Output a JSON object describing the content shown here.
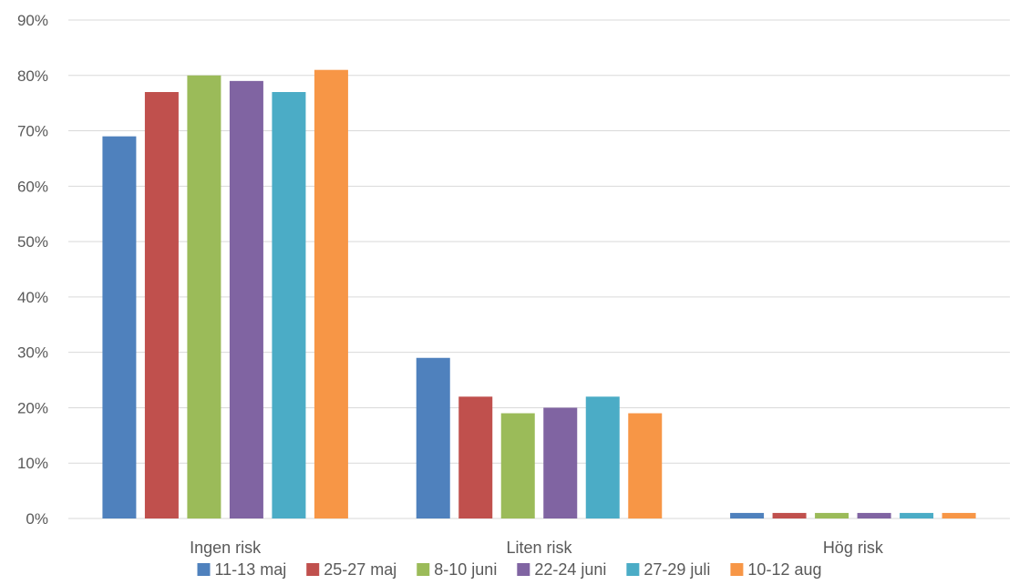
{
  "chart_data": {
    "type": "bar",
    "title": "",
    "xlabel": "",
    "ylabel": "",
    "ylim": [
      0,
      90
    ],
    "y_ticks": [
      "0%",
      "10%",
      "20%",
      "30%",
      "40%",
      "50%",
      "60%",
      "70%",
      "80%",
      "90%"
    ],
    "y_tick_values": [
      0,
      10,
      20,
      30,
      40,
      50,
      60,
      70,
      80,
      90
    ],
    "categories": [
      "Ingen risk",
      "Liten risk",
      "Hög risk"
    ],
    "grid": true,
    "legend_position": "bottom",
    "series": [
      {
        "name": "11-13 maj",
        "color": "#4F81BD",
        "values": [
          69,
          29,
          1
        ]
      },
      {
        "name": "25-27 maj",
        "color": "#C0504D",
        "values": [
          77,
          22,
          1
        ]
      },
      {
        "name": "8-10 juni",
        "color": "#9BBB59",
        "values": [
          80,
          19,
          1
        ]
      },
      {
        "name": "22-24 juni",
        "color": "#8064A2",
        "values": [
          79,
          20,
          1
        ]
      },
      {
        "name": "27-29 juli",
        "color": "#4BACC6",
        "values": [
          77,
          22,
          1
        ]
      },
      {
        "name": "10-12 aug",
        "color": "#F79646",
        "values": [
          81,
          19,
          1
        ]
      }
    ]
  }
}
